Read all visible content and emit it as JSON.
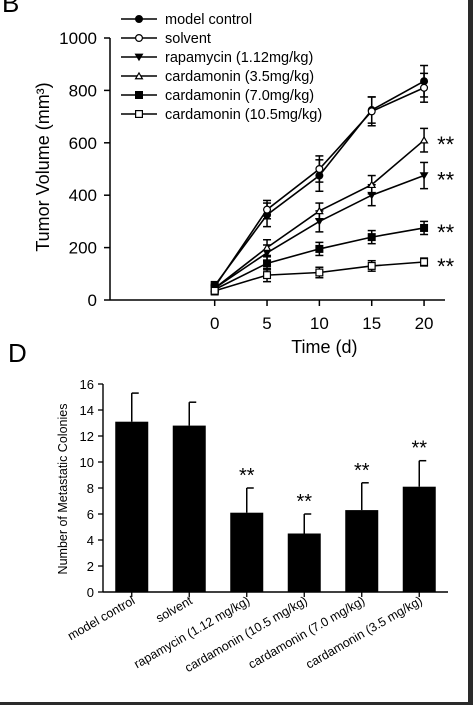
{
  "panels": {
    "top_label": "B",
    "bottom_label": "D"
  },
  "chart_data": [
    {
      "type": "line",
      "panel": "B",
      "xlabel": "Time (d)",
      "ylabel": "Tumor Volume (mm³)",
      "x": [
        0,
        5,
        10,
        15,
        20
      ],
      "xticks": [
        "0",
        "5",
        "10",
        "15",
        "20"
      ],
      "xlim": [
        -10,
        22
      ],
      "yticks": [
        "0",
        "200",
        "400",
        "600",
        "800",
        "1000"
      ],
      "ylim": [
        0,
        1000
      ],
      "legend_position": "top-left",
      "significance": "**",
      "series": [
        {
          "name": "model control",
          "marker": "circle-filled",
          "values": [
            55,
            325,
            475,
            725,
            835
          ],
          "errors": [
            15,
            45,
            60,
            50,
            60
          ],
          "sig": false
        },
        {
          "name": "solvent",
          "marker": "circle-open",
          "values": [
            50,
            345,
            500,
            720,
            810
          ],
          "errors": [
            15,
            35,
            50,
            55,
            55
          ],
          "sig": false
        },
        {
          "name": "rapamycin (1.12mg/kg)",
          "marker": "triangle-down-filled",
          "values": [
            45,
            180,
            300,
            400,
            475
          ],
          "errors": [
            15,
            30,
            40,
            40,
            50
          ],
          "sig": true
        },
        {
          "name": "cardamonin (3.5mg/kg)",
          "marker": "triangle-up-open",
          "values": [
            45,
            200,
            340,
            440,
            610
          ],
          "errors": [
            15,
            30,
            30,
            35,
            45
          ],
          "sig": true
        },
        {
          "name": "cardamonin (7.0mg/kg)",
          "marker": "square-filled",
          "values": [
            40,
            140,
            195,
            240,
            275
          ],
          "errors": [
            15,
            25,
            25,
            25,
            25
          ],
          "sig": true
        },
        {
          "name": "cardamonin (10.5mg/kg)",
          "marker": "square-open",
          "values": [
            35,
            95,
            105,
            130,
            145
          ],
          "errors": [
            15,
            25,
            20,
            20,
            15
          ],
          "sig": true
        }
      ]
    },
    {
      "type": "bar",
      "panel": "D",
      "ylabel": "Number of Metastatic Colonies",
      "categories": [
        "model control",
        "solvent",
        "rapamycin (1.12 mg/kg)",
        "cardamonin (10.5 mg/kg)",
        "cardamonin (7.0 mg/kg)",
        "cardamonin (3.5 mg/kg)"
      ],
      "values": [
        13.1,
        12.8,
        6.1,
        4.5,
        6.3,
        8.1
      ],
      "errors": [
        2.2,
        1.8,
        1.9,
        1.5,
        2.1,
        2.0
      ],
      "sig": [
        false,
        false,
        true,
        true,
        true,
        true
      ],
      "significance": "**",
      "yticks": [
        "0",
        "2",
        "4",
        "6",
        "8",
        "10",
        "12",
        "14",
        "16"
      ],
      "ylim": [
        0,
        16
      ],
      "color": "#000000"
    }
  ]
}
